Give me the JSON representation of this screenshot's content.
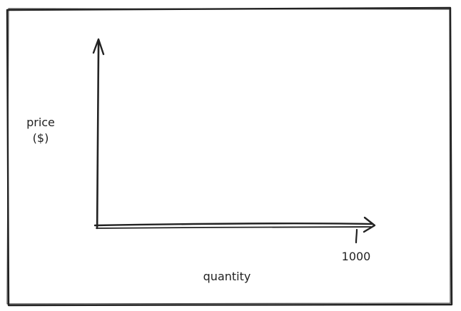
{
  "diagram": {
    "y_axis_label_line1": "price",
    "y_axis_label_line2": "($)",
    "x_axis_label": "quantity",
    "x_tick_label": "1000"
  },
  "colors": {
    "ink": "#222222",
    "background": "#ffffff"
  }
}
